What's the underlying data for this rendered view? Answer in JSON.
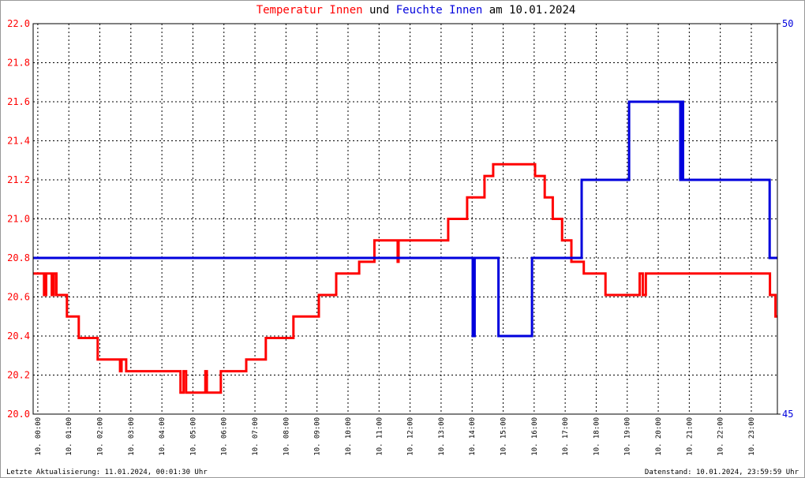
{
  "chart_data": {
    "type": "line",
    "title_connector": "und",
    "title_date": "am 10.01.2024",
    "footer_left": "Letzte Aktualisierung: 11.01.2024, 00:01:30 Uhr",
    "footer_right": "Datenstand: 10.01.2024, 23:59:59 Uhr",
    "grid": true,
    "xlim": [
      -0.15,
      23.84
    ],
    "xticks": [
      {
        "value": 0,
        "label": "10. 00:00"
      },
      {
        "value": 1,
        "label": "10. 01:00"
      },
      {
        "value": 2,
        "label": "10. 02:00"
      },
      {
        "value": 3,
        "label": "10. 03:00"
      },
      {
        "value": 4,
        "label": "10. 04:00"
      },
      {
        "value": 5,
        "label": "10. 05:00"
      },
      {
        "value": 6,
        "label": "10. 06:00"
      },
      {
        "value": 7,
        "label": "10. 07:00"
      },
      {
        "value": 8,
        "label": "10. 08:00"
      },
      {
        "value": 9,
        "label": "10. 09:00"
      },
      {
        "value": 10,
        "label": "10. 10:00"
      },
      {
        "value": 11,
        "label": "10. 11:00"
      },
      {
        "value": 12,
        "label": "10. 12:00"
      },
      {
        "value": 13,
        "label": "10. 13:00"
      },
      {
        "value": 14,
        "label": "10. 14:00"
      },
      {
        "value": 15,
        "label": "10. 15:00"
      },
      {
        "value": 16,
        "label": "10. 16:00"
      },
      {
        "value": 17,
        "label": "10. 17:00"
      },
      {
        "value": 18,
        "label": "10. 18:00"
      },
      {
        "value": 19,
        "label": "10. 19:00"
      },
      {
        "value": 20,
        "label": "10. 20:00"
      },
      {
        "value": 21,
        "label": "10. 21:00"
      },
      {
        "value": 22,
        "label": "10. 22:00"
      },
      {
        "value": 23,
        "label": "10. 23:00"
      }
    ],
    "ylim": [
      20.0,
      22.0
    ],
    "yticks": [
      {
        "value": 20.0,
        "label": "20.0"
      },
      20.2,
      20.4,
      20.6,
      20.8,
      {
        "value": 21.0,
        "label": "21.0"
      },
      21.2,
      21.4,
      21.6,
      21.8,
      {
        "value": 22.0,
        "label": "22.0"
      }
    ],
    "y2lim": [
      45,
      50
    ],
    "y2ticks": [
      45,
      50
    ],
    "series": [
      {
        "name": "Temperatur Innen",
        "color": "#ff0000",
        "x": [
          -0.15,
          0.2,
          0.2,
          0.27,
          0.27,
          0.45,
          0.45,
          0.52,
          0.52,
          0.6,
          0.6,
          0.94,
          0.94,
          1.32,
          1.32,
          1.93,
          1.93,
          2.65,
          2.65,
          2.7,
          2.7,
          2.85,
          2.85,
          4.6,
          4.6,
          4.7,
          4.7,
          4.78,
          4.78,
          5.4,
          5.4,
          5.45,
          5.45,
          5.9,
          5.9,
          6.72,
          6.72,
          7.35,
          7.35,
          8.24,
          8.24,
          9.06,
          9.06,
          9.62,
          9.62,
          10.36,
          10.36,
          10.85,
          10.85,
          11.6,
          11.6,
          11.63,
          11.63,
          13.23,
          13.23,
          13.84,
          13.84,
          14.4,
          14.4,
          14.68,
          14.68,
          16.03,
          16.03,
          16.34,
          16.34,
          16.6,
          16.6,
          16.9,
          16.9,
          17.2,
          17.2,
          17.6,
          17.6,
          18.3,
          18.3,
          19.4,
          19.4,
          19.5,
          19.5,
          19.6,
          19.6,
          23.6,
          23.6,
          23.78,
          23.78,
          23.84
        ],
        "values": [
          20.72,
          20.72,
          20.61,
          20.61,
          20.72,
          20.72,
          20.61,
          20.61,
          20.72,
          20.72,
          20.61,
          20.61,
          20.5,
          20.5,
          20.39,
          20.39,
          20.28,
          20.28,
          20.22,
          20.22,
          20.28,
          20.28,
          20.22,
          20.22,
          20.11,
          20.11,
          20.22,
          20.22,
          20.11,
          20.11,
          20.22,
          20.22,
          20.11,
          20.11,
          20.22,
          20.22,
          20.28,
          20.28,
          20.39,
          20.39,
          20.5,
          20.5,
          20.61,
          20.61,
          20.72,
          20.72,
          20.78,
          20.78,
          20.89,
          20.89,
          20.78,
          20.78,
          20.89,
          20.89,
          21.0,
          21.0,
          21.11,
          21.11,
          21.22,
          21.22,
          21.28,
          21.28,
          21.22,
          21.22,
          21.11,
          21.11,
          21.0,
          21.0,
          20.89,
          20.89,
          20.78,
          20.78,
          20.72,
          20.72,
          20.61,
          20.61,
          20.72,
          20.72,
          20.61,
          20.61,
          20.72,
          20.72,
          20.61,
          20.61,
          20.5,
          20.5
        ]
      },
      {
        "name": "Feuchte Innen",
        "color": "#0000dd",
        "axis": "y2",
        "x": [
          -0.15,
          14.02,
          14.02,
          14.08,
          14.08,
          14.85,
          14.85,
          15.93,
          15.93,
          17.53,
          17.53,
          19.06,
          19.06,
          20.71,
          20.71,
          20.75,
          20.75,
          20.8,
          20.8,
          23.59,
          23.59,
          23.84
        ],
        "values": [
          47,
          47,
          46,
          46,
          47,
          47,
          46,
          46,
          47,
          47,
          48,
          48,
          49,
          49,
          48,
          48,
          49,
          49,
          48,
          48,
          47,
          47
        ]
      }
    ]
  }
}
